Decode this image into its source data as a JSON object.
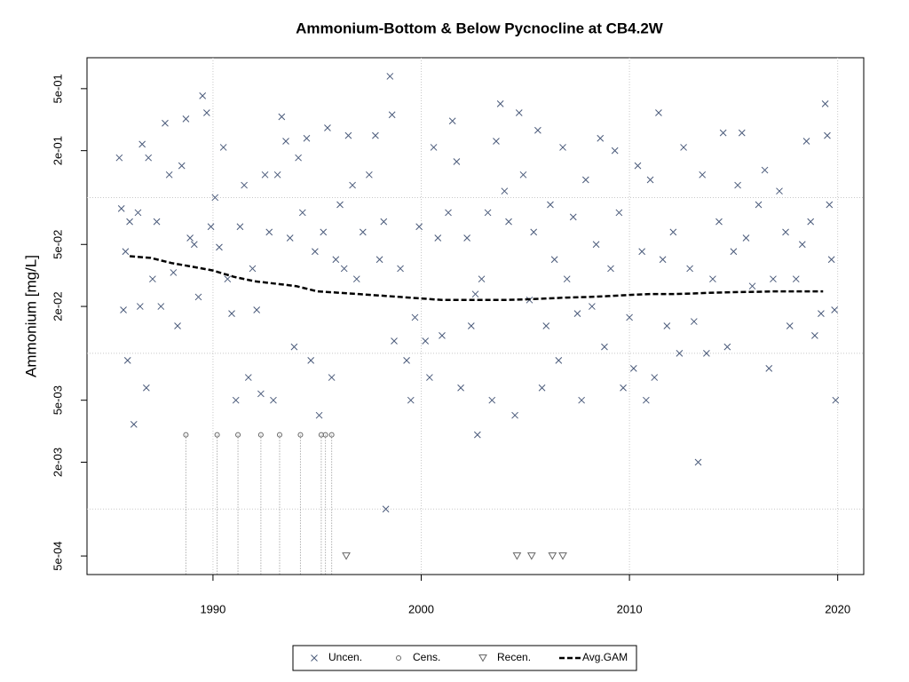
{
  "chart_data": {
    "type": "scatter",
    "title": "Ammonium-Bottom & Below Pycnocline at CB4.2W",
    "y_label": "Ammonium [mg/L]",
    "log_y": true,
    "grid": true,
    "legend": "bottom",
    "xlim": [
      1983.95,
      2021.25
    ],
    "xticks": [
      1990,
      2000,
      2010,
      2020
    ],
    "ylim": [
      0.00038,
      0.79
    ],
    "yticks": [
      {
        "value": 0.5,
        "label": "5e-01"
      },
      {
        "value": 0.2,
        "label": "2e-01"
      },
      {
        "value": 0.05,
        "label": "5e-02"
      },
      {
        "value": 0.02,
        "label": "2e-02"
      },
      {
        "value": 0.005,
        "label": "5e-03"
      },
      {
        "value": 0.002,
        "label": "2e-03"
      },
      {
        "value": 0.0005,
        "label": "5e-04"
      }
    ],
    "ygrid": [
      0.1,
      0.01,
      0.001
    ],
    "series": [
      {
        "name": "Uncen.",
        "marker": "x",
        "color": "#4a5a7a",
        "x": [
          1985.5,
          1985.6,
          1985.7,
          1985.8,
          1985.9,
          1986.0,
          1986.2,
          1986.4,
          1986.5,
          1986.6,
          1986.8,
          1986.9,
          1987.1,
          1987.3,
          1987.5,
          1987.7,
          1987.9,
          1988.1,
          1988.3,
          1988.5,
          1988.7,
          1988.9,
          1989.1,
          1989.3,
          1989.5,
          1989.7,
          1989.9,
          1990.1,
          1990.3,
          1990.5,
          1990.7,
          1990.9,
          1991.1,
          1991.3,
          1991.5,
          1991.7,
          1991.9,
          1992.1,
          1992.3,
          1992.5,
          1992.7,
          1992.9,
          1993.1,
          1993.3,
          1993.5,
          1993.7,
          1993.9,
          1994.1,
          1994.3,
          1994.5,
          1994.7,
          1994.9,
          1995.1,
          1995.3,
          1995.5,
          1995.7,
          1995.9,
          1996.1,
          1996.3,
          1996.5,
          1996.7,
          1996.9,
          1997.2,
          1997.5,
          1997.8,
          1998.0,
          1998.2,
          1998.3,
          1998.5,
          1998.6,
          1998.7,
          1999.0,
          1999.3,
          1999.5,
          1999.7,
          1999.9,
          2000.2,
          2000.4,
          2000.6,
          2000.8,
          2001.0,
          2001.3,
          2001.5,
          2001.7,
          2001.9,
          2002.2,
          2002.4,
          2002.6,
          2002.7,
          2002.9,
          2003.2,
          2003.4,
          2003.6,
          2003.8,
          2004.0,
          2004.2,
          2004.5,
          2004.7,
          2004.9,
          2005.2,
          2005.4,
          2005.6,
          2005.8,
          2006.0,
          2006.2,
          2006.4,
          2006.6,
          2006.8,
          2007.0,
          2007.3,
          2007.5,
          2007.7,
          2007.9,
          2008.2,
          2008.4,
          2008.6,
          2008.8,
          2009.1,
          2009.3,
          2009.5,
          2009.7,
          2010.0,
          2010.2,
          2010.4,
          2010.6,
          2010.8,
          2011.0,
          2011.2,
          2011.4,
          2011.6,
          2011.8,
          2012.1,
          2012.4,
          2012.6,
          2012.9,
          2013.1,
          2013.3,
          2013.5,
          2013.7,
          2014.0,
          2014.3,
          2014.5,
          2014.7,
          2015.0,
          2015.2,
          2015.4,
          2015.6,
          2015.9,
          2016.2,
          2016.5,
          2016.7,
          2016.9,
          2017.2,
          2017.5,
          2017.7,
          2018.0,
          2018.3,
          2018.5,
          2018.7,
          2018.9,
          2019.2,
          2019.4,
          2019.5,
          2019.6,
          2019.7,
          2019.85,
          2019.9
        ],
        "values": [
          0.18,
          0.085,
          0.019,
          0.045,
          0.009,
          0.07,
          0.0035,
          0.08,
          0.02,
          0.22,
          0.006,
          0.18,
          0.03,
          0.07,
          0.02,
          0.3,
          0.14,
          0.033,
          0.015,
          0.16,
          0.32,
          0.055,
          0.05,
          0.023,
          0.45,
          0.35,
          0.065,
          0.1,
          0.048,
          0.21,
          0.03,
          0.018,
          0.005,
          0.065,
          0.12,
          0.007,
          0.035,
          0.019,
          0.0055,
          0.14,
          0.06,
          0.005,
          0.14,
          0.33,
          0.23,
          0.055,
          0.011,
          0.18,
          0.08,
          0.24,
          0.009,
          0.045,
          0.004,
          0.06,
          0.28,
          0.007,
          0.04,
          0.09,
          0.035,
          0.25,
          0.12,
          0.03,
          0.06,
          0.14,
          0.25,
          0.04,
          0.07,
          0.001,
          0.6,
          0.34,
          0.012,
          0.035,
          0.009,
          0.005,
          0.017,
          0.065,
          0.012,
          0.007,
          0.21,
          0.055,
          0.013,
          0.08,
          0.31,
          0.17,
          0.006,
          0.055,
          0.015,
          0.024,
          0.003,
          0.03,
          0.08,
          0.005,
          0.23,
          0.4,
          0.11,
          0.07,
          0.004,
          0.35,
          0.14,
          0.022,
          0.06,
          0.27,
          0.006,
          0.015,
          0.09,
          0.04,
          0.009,
          0.21,
          0.03,
          0.075,
          0.018,
          0.005,
          0.13,
          0.02,
          0.05,
          0.24,
          0.011,
          0.035,
          0.2,
          0.08,
          0.006,
          0.017,
          0.008,
          0.16,
          0.045,
          0.005,
          0.13,
          0.007,
          0.35,
          0.04,
          0.015,
          0.06,
          0.01,
          0.21,
          0.035,
          0.016,
          0.002,
          0.14,
          0.01,
          0.03,
          0.07,
          0.26,
          0.011,
          0.045,
          0.12,
          0.26,
          0.055,
          0.027,
          0.09,
          0.15,
          0.008,
          0.03,
          0.11,
          0.06,
          0.015,
          0.03,
          0.05,
          0.23,
          0.07,
          0.013,
          0.018,
          0.4,
          0.25,
          0.09,
          0.04,
          0.019,
          0.005
        ]
      },
      {
        "name": "Cens.",
        "marker": "o",
        "color": "#666666",
        "x": [
          1988.7,
          1990.2,
          1991.2,
          1992.3,
          1993.2,
          1994.2,
          1995.2,
          1995.4,
          1995.7
        ],
        "values": [
          0.003,
          0.003,
          0.003,
          0.003,
          0.003,
          0.003,
          0.003,
          0.003,
          0.003
        ]
      },
      {
        "name": "Recen.",
        "marker": "v",
        "color": "#666666",
        "x": [
          1996.4,
          2004.6,
          2005.3,
          2006.3,
          2006.8
        ],
        "values": [
          0.0005,
          0.0005,
          0.0005,
          0.0005,
          0.0005
        ]
      },
      {
        "name": "Avg.GAM",
        "marker": "line",
        "color": "#000000",
        "x": [
          1986,
          1987,
          1988,
          1989,
          1990,
          1991,
          1992,
          1993,
          1994,
          1995,
          1996,
          1997,
          1998,
          1999,
          2000,
          2001,
          2002,
          2003,
          2004,
          2005,
          2006,
          2007,
          2008,
          2009,
          2010,
          2011,
          2012,
          2013,
          2014,
          2015,
          2016,
          2017,
          2018,
          2019.3
        ],
        "values": [
          0.042,
          0.041,
          0.038,
          0.036,
          0.034,
          0.031,
          0.029,
          0.028,
          0.027,
          0.025,
          0.0245,
          0.024,
          0.0235,
          0.023,
          0.0225,
          0.022,
          0.022,
          0.022,
          0.022,
          0.0222,
          0.0225,
          0.0228,
          0.023,
          0.0233,
          0.0237,
          0.024,
          0.024,
          0.0242,
          0.0245,
          0.0247,
          0.0248,
          0.025,
          0.025,
          0.025
        ]
      }
    ]
  }
}
